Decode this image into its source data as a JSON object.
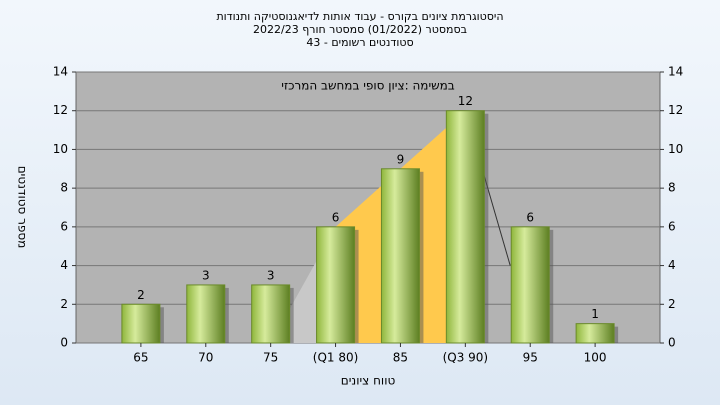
{
  "chart_data": {
    "type": "bar",
    "title": [
      "היסטוגרמת ציונים בקורס - עבוד אותות לדיאגנוסטיקה ותנודות",
      "בסמסטר (01/2022)  סמסטר חורף 2022/23",
      "סטודנטים רשומים - 43"
    ],
    "annotation": "במשימה :ציון סופי במחשב המרכזי",
    "xlabel": "טווח ציונים",
    "ylabel": "מספר סטודנטים",
    "categories": [
      "65",
      "70",
      "75",
      "(Q1 80)",
      "85",
      "(Q3 90)",
      "95",
      "100"
    ],
    "values": [
      2,
      3,
      3,
      6,
      9,
      12,
      6,
      1
    ],
    "color": "#9cc24a",
    "ylim": [
      0,
      14
    ],
    "yticks": [
      0,
      2,
      4,
      6,
      8,
      10,
      12,
      14
    ],
    "y2lim": [
      0,
      14
    ],
    "y2ticks": [
      0,
      2,
      4,
      6,
      8,
      10,
      12,
      14
    ],
    "grid": true
  }
}
